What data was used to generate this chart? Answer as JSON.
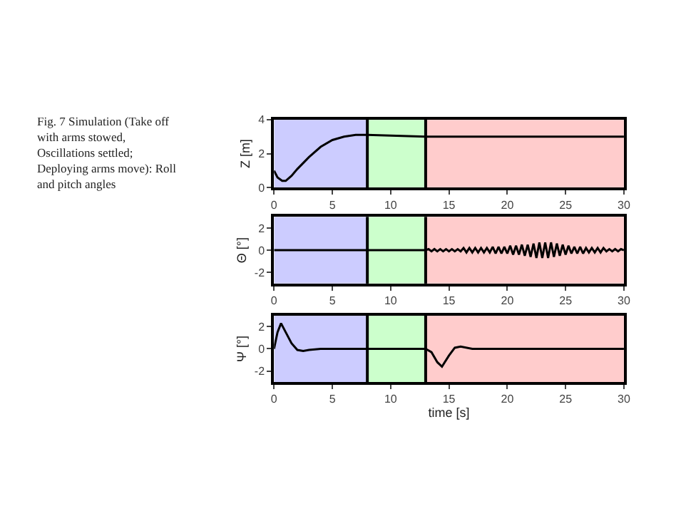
{
  "chart_data": [
    {
      "type": "line",
      "ylabel": "Z [m]",
      "annotations": [
        "Fig. 7 Simulation (Take off with arms stowed, Oscillations settled; Deploying arms move): Roll and pitch angles"
      ],
      "xlim": [
        0,
        30
      ],
      "xticks": [
        0,
        5,
        10,
        15,
        20,
        25,
        30
      ],
      "ylim": [
        0,
        4
      ],
      "yticks": [
        0,
        2,
        4
      ],
      "bands": [
        {
          "axis": "x",
          "from": 0,
          "to": 8,
          "color": "#ccccff"
        },
        {
          "axis": "x",
          "from": 8,
          "to": 13,
          "color": "#ccffcc"
        },
        {
          "axis": "x",
          "from": 13,
          "to": 30,
          "color": "#ffcccc"
        }
      ],
      "ref_lines": [
        {
          "axis": "x",
          "value": 8,
          "color": "#000000"
        },
        {
          "axis": "x",
          "value": 13,
          "color": "#000000"
        }
      ],
      "series": [
        {
          "color": "#000000",
          "x": [
            0,
            0.3,
            0.7,
            1,
            1.5,
            2,
            3,
            4,
            5,
            6,
            7,
            8,
            13,
            30
          ],
          "values": [
            1.0,
            0.6,
            0.4,
            0.4,
            0.7,
            1.1,
            1.8,
            2.4,
            2.8,
            3.0,
            3.1,
            3.1,
            3.0,
            3.0
          ]
        }
      ]
    },
    {
      "type": "line",
      "ylabel": "Θ [°]",
      "xlim": [
        0,
        30
      ],
      "xticks": [
        0,
        5,
        10,
        15,
        20,
        25,
        30
      ],
      "ylim": [
        -3,
        3
      ],
      "yticks": [
        -2,
        0,
        2
      ],
      "bands": [
        {
          "axis": "x",
          "from": 0,
          "to": 8,
          "color": "#ccccff"
        },
        {
          "axis": "x",
          "from": 8,
          "to": 13,
          "color": "#ccffcc"
        },
        {
          "axis": "x",
          "from": 13,
          "to": 30,
          "color": "#ffcccc"
        }
      ],
      "ref_lines": [
        {
          "axis": "x",
          "value": 8,
          "color": "#000000"
        },
        {
          "axis": "x",
          "value": 13,
          "color": "#000000"
        }
      ],
      "series": [
        {
          "color": "#000000",
          "x": [
            0,
            13,
            13.25,
            13.5,
            13.75,
            14,
            14.25,
            14.5,
            14.75,
            15,
            15.25,
            15.5,
            15.75,
            16,
            16.25,
            16.5,
            16.75,
            17,
            17.25,
            17.5,
            17.75,
            18,
            18.25,
            18.5,
            18.75,
            19,
            19.25,
            19.5,
            19.75,
            20,
            20.25,
            20.5,
            20.75,
            21,
            21.25,
            21.5,
            21.75,
            22,
            22.25,
            22.5,
            22.75,
            23,
            23.25,
            23.5,
            23.75,
            24,
            24.25,
            24.5,
            24.75,
            25,
            25.25,
            25.5,
            25.75,
            26,
            26.25,
            26.5,
            26.75,
            27,
            27.25,
            27.5,
            27.75,
            28,
            28.25,
            28.5,
            28.75,
            29,
            29.25,
            29.5,
            29.75,
            30
          ],
          "values": [
            0,
            0,
            0.1,
            -0.1,
            0.1,
            -0.1,
            0.1,
            -0.1,
            0.1,
            -0.1,
            0.1,
            -0.1,
            0.1,
            -0.1,
            0.2,
            -0.2,
            0.2,
            -0.2,
            0.2,
            -0.2,
            0.2,
            -0.2,
            0.2,
            -0.2,
            0.3,
            -0.3,
            0.3,
            -0.3,
            0.3,
            -0.3,
            0.4,
            -0.4,
            0.4,
            -0.4,
            0.5,
            -0.5,
            0.5,
            -0.6,
            0.6,
            -0.7,
            0.7,
            -0.7,
            0.7,
            -0.7,
            0.7,
            -0.6,
            0.6,
            -0.5,
            0.5,
            -0.4,
            0.4,
            -0.3,
            0.3,
            -0.3,
            0.3,
            -0.3,
            0.2,
            -0.2,
            0.2,
            -0.2,
            0.2,
            -0.2,
            0.2,
            -0.1,
            0.1,
            -0.1,
            0.1,
            -0.1,
            0.1,
            0
          ]
        }
      ]
    },
    {
      "type": "line",
      "ylabel": "Ψ [°]",
      "xlabel": "time [s]",
      "xlim": [
        0,
        30
      ],
      "xticks": [
        0,
        5,
        10,
        15,
        20,
        25,
        30
      ],
      "ylim": [
        -3,
        3
      ],
      "yticks": [
        -2,
        0,
        2
      ],
      "bands": [
        {
          "axis": "x",
          "from": 0,
          "to": 8,
          "color": "#ccccff"
        },
        {
          "axis": "x",
          "from": 8,
          "to": 13,
          "color": "#ccffcc"
        },
        {
          "axis": "x",
          "from": 13,
          "to": 30,
          "color": "#ffcccc"
        }
      ],
      "ref_lines": [
        {
          "axis": "x",
          "value": 8,
          "color": "#000000"
        },
        {
          "axis": "x",
          "value": 13,
          "color": "#000000"
        }
      ],
      "series": [
        {
          "color": "#000000",
          "x": [
            0,
            0.3,
            0.6,
            1,
            1.5,
            2,
            2.5,
            3,
            4,
            13,
            13.5,
            14,
            14.4,
            15,
            15.5,
            16,
            17,
            30
          ],
          "values": [
            0,
            1.5,
            2.3,
            1.5,
            0.5,
            -0.1,
            -0.2,
            -0.1,
            0,
            0,
            -0.3,
            -1.2,
            -1.6,
            -0.6,
            0.1,
            0.2,
            0,
            0
          ]
        }
      ]
    }
  ]
}
